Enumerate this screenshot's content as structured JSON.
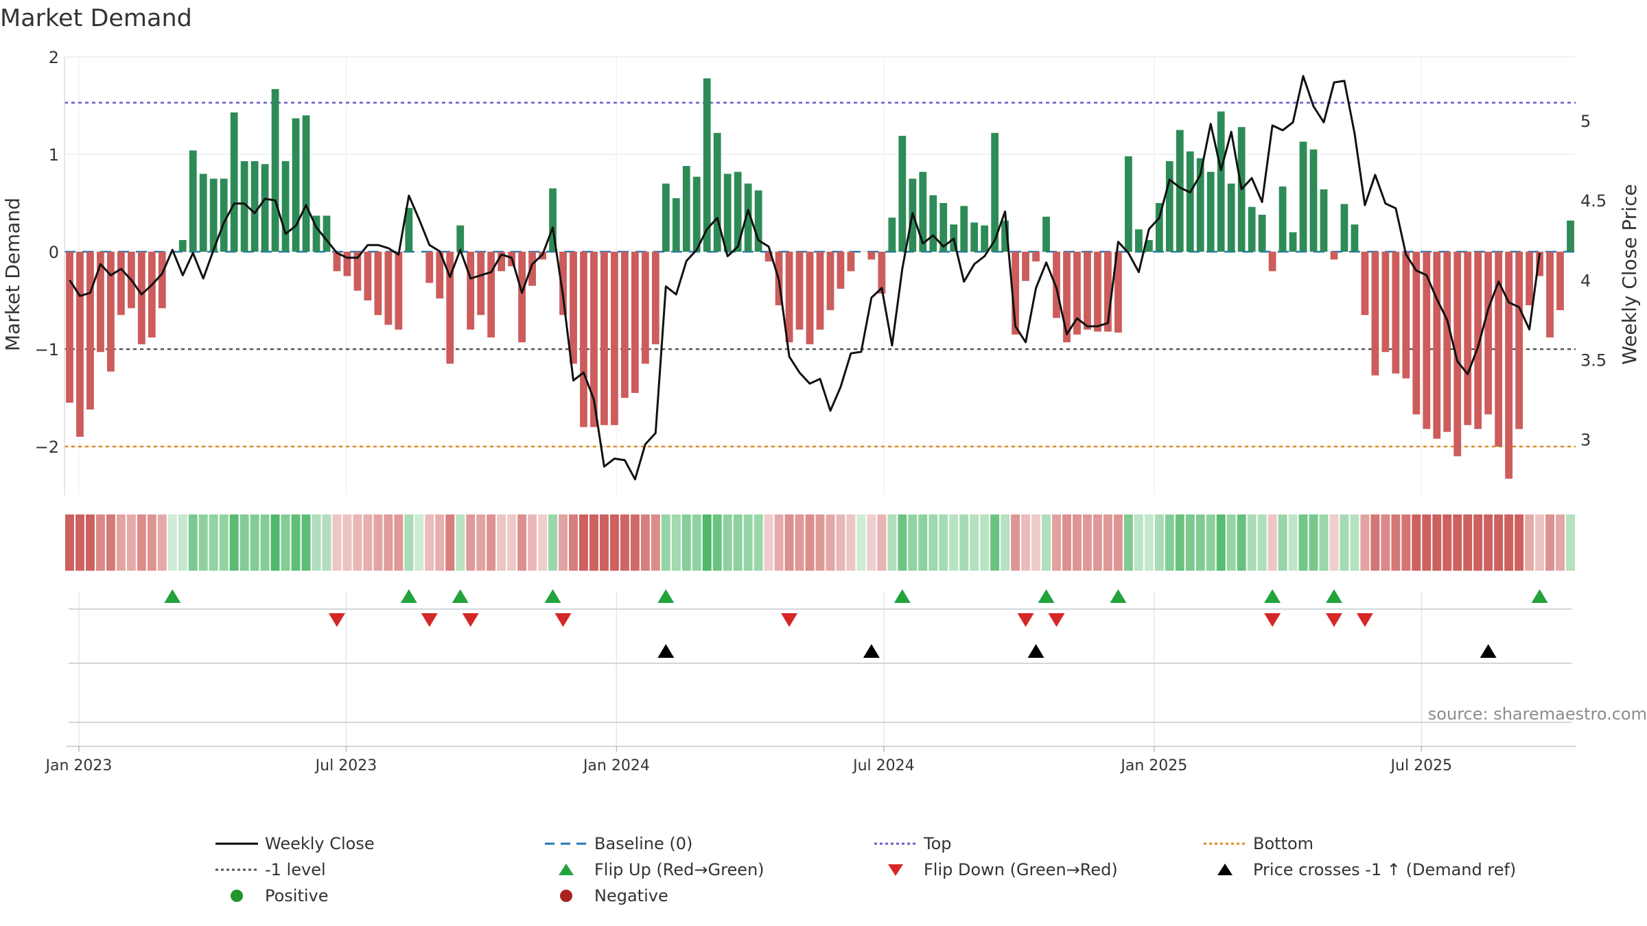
{
  "chart_data": {
    "type": "bar",
    "title": "Market Demand",
    "ylabel": "Market Demand",
    "y2label": "Weekly Close Price",
    "ylim": [
      -2.5,
      2.0
    ],
    "y2lim": [
      2.65,
      5.4
    ],
    "yticks": [
      "2",
      "1",
      "0",
      "−1",
      "−2"
    ],
    "ytick_values": [
      2,
      1,
      0,
      -1,
      -2
    ],
    "y2ticks": [
      "5",
      "4.5",
      "4",
      "3.5",
      "3"
    ],
    "y2tick_values": [
      5,
      4.5,
      4,
      3.5,
      3
    ],
    "x_tick_labels": [
      "Jan 2023",
      "Jul 2023",
      "Jan 2024",
      "Jul 2024",
      "Jan 2025",
      "Jul 2025"
    ],
    "x_tick_weeks": [
      1.4,
      27.4,
      53.7,
      79.7,
      106.0,
      132.0
    ],
    "reference_lines": {
      "top": 1.53,
      "minus_one": -1,
      "bottom": -2,
      "baseline": 0
    },
    "series": [
      {
        "name": "Market Demand",
        "values": [
          -1.55,
          -1.9,
          -1.62,
          -1.03,
          -1.23,
          -0.65,
          -0.58,
          -0.95,
          -0.88,
          -0.58,
          0.0,
          0.12,
          1.04,
          0.8,
          0.75,
          0.75,
          1.43,
          0.93,
          0.93,
          0.9,
          1.67,
          0.93,
          1.37,
          1.4,
          0.37,
          0.37,
          -0.2,
          -0.25,
          -0.4,
          -0.5,
          -0.65,
          -0.75,
          -0.8,
          0.45,
          0.0,
          -0.32,
          -0.48,
          -1.15,
          0.27,
          -0.8,
          -0.65,
          -0.88,
          -0.2,
          -0.15,
          -0.93,
          -0.35,
          -0.08,
          0.65,
          -0.65,
          -1.15,
          -1.8,
          -1.8,
          -1.78,
          -1.78,
          -1.5,
          -1.45,
          -1.15,
          -0.95,
          0.7,
          0.55,
          0.88,
          0.77,
          1.78,
          1.22,
          0.8,
          0.82,
          0.7,
          0.63,
          -0.1,
          -0.55,
          -0.93,
          -0.8,
          -0.95,
          -0.8,
          -0.6,
          -0.38,
          -0.2,
          0.0,
          -0.08,
          -0.43,
          0.35,
          1.19,
          0.75,
          0.82,
          0.58,
          0.5,
          0.28,
          0.47,
          0.3,
          0.27,
          1.22,
          0.32,
          -0.85,
          -0.3,
          -0.1,
          0.36,
          -0.68,
          -0.93,
          -0.85,
          -0.8,
          -0.82,
          -0.82,
          -0.83,
          0.98,
          0.23,
          0.12,
          0.5,
          0.93,
          1.25,
          1.03,
          0.96,
          0.82,
          1.44,
          0.7,
          1.28,
          0.46,
          0.38,
          -0.2,
          0.67,
          0.2,
          1.13,
          1.05,
          0.64,
          -0.08,
          0.49,
          0.28,
          -0.65,
          -1.27,
          -1.03,
          -1.25,
          -1.3,
          -1.67,
          -1.82,
          -1.92,
          -1.85,
          -2.1,
          -1.78,
          -1.82,
          -1.67,
          -2.0,
          -2.33,
          -1.82,
          -0.55,
          -0.25,
          -0.88,
          -0.6,
          0.32
        ]
      },
      {
        "name": "Weekly Close",
        "axis": "right",
        "values": [
          4,
          3.9,
          3.92,
          4.1,
          4.03,
          4.07,
          4,
          3.91,
          3.97,
          4.04,
          4.19,
          4.03,
          4.17,
          4.01,
          4.19,
          4.36,
          4.48,
          4.48,
          4.42,
          4.51,
          4.5,
          4.29,
          4.34,
          4.47,
          4.33,
          4.25,
          4.17,
          4.14,
          4.14,
          4.22,
          4.22,
          4.2,
          4.16,
          4.53,
          4.38,
          4.22,
          4.18,
          4.02,
          4.19,
          4.01,
          4.03,
          4.05,
          4.16,
          4.14,
          3.92,
          4.1,
          4.16,
          4.33,
          3.9,
          3.37,
          3.42,
          3.25,
          2.83,
          2.88,
          2.87,
          2.75,
          2.97,
          3.04,
          3.96,
          3.91,
          4.12,
          4.19,
          4.32,
          4.39,
          4.15,
          4.21,
          4.44,
          4.25,
          4.21,
          4.0,
          3.52,
          3.42,
          3.35,
          3.38,
          3.18,
          3.33,
          3.54,
          3.55,
          3.89,
          3.95,
          3.59,
          4.07,
          4.42,
          4.23,
          4.28,
          4.21,
          4.26,
          3.99,
          4.1,
          4.15,
          4.25,
          4.43,
          3.71,
          3.61,
          3.95,
          4.11,
          3.95,
          3.66,
          3.76,
          3.71,
          3.71,
          3.73,
          4.24,
          4.17,
          4.05,
          4.32,
          4.39,
          4.63,
          4.58,
          4.55,
          4.66,
          4.98,
          4.69,
          4.93,
          4.57,
          4.64,
          4.49,
          4.97,
          4.94,
          4.99,
          5.28,
          5.09,
          4.99,
          5.24,
          5.25,
          4.92,
          4.47,
          4.66,
          4.48,
          4.45,
          4.16,
          4.06,
          4.03,
          3.88,
          3.75,
          3.49,
          3.41,
          3.58,
          3.82,
          3.99,
          3.86,
          3.83,
          3.69,
          4.17
        ]
      }
    ],
    "flip_up_weeks": [
      10,
      33,
      38,
      47,
      58,
      81,
      95,
      102,
      117,
      123,
      143
    ],
    "flip_down_weeks": [
      26,
      35,
      39,
      48,
      70,
      93,
      96,
      117,
      123,
      126
    ],
    "price_cross_weeks": [
      58,
      78,
      94,
      138
    ],
    "legend": [
      {
        "label": "Weekly Close",
        "symbol": "line",
        "color": "#000000"
      },
      {
        "label": "Baseline (0)",
        "symbol": "dash",
        "color": "#1f77b4"
      },
      {
        "label": "Top",
        "symbol": "dot",
        "color": "#6a5acd"
      },
      {
        "label": "Bottom",
        "symbol": "dot",
        "color": "#e08a1e"
      },
      {
        "label": "-1 level",
        "symbol": "dot",
        "color": "#555555"
      },
      {
        "label": "Flip Up (Red→Green)",
        "symbol": "tri-up",
        "color": "#22a33c"
      },
      {
        "label": "Flip Down (Green→Red)",
        "symbol": "tri-down",
        "color": "#d62728"
      },
      {
        "label": "Price crosses -1 ↑ (Demand ref)",
        "symbol": "tri-up",
        "color": "#000000"
      },
      {
        "label": "Positive",
        "symbol": "dot-marker",
        "color": "#22962c"
      },
      {
        "label": "Negative",
        "symbol": "dot-marker",
        "color": "#a82222"
      }
    ],
    "source_note": "source: sharemaestro.com"
  },
  "colors": {
    "positive_bar": "#2e8b57",
    "negative_bar": "#cd5c5c",
    "strip_positive": "#3cb05a",
    "strip_negative": "#c8504f",
    "top_line": "#6a5acd",
    "bottom_line": "#e08a1e",
    "minus_one_line": "#555555",
    "baseline": "#1f77b4"
  }
}
